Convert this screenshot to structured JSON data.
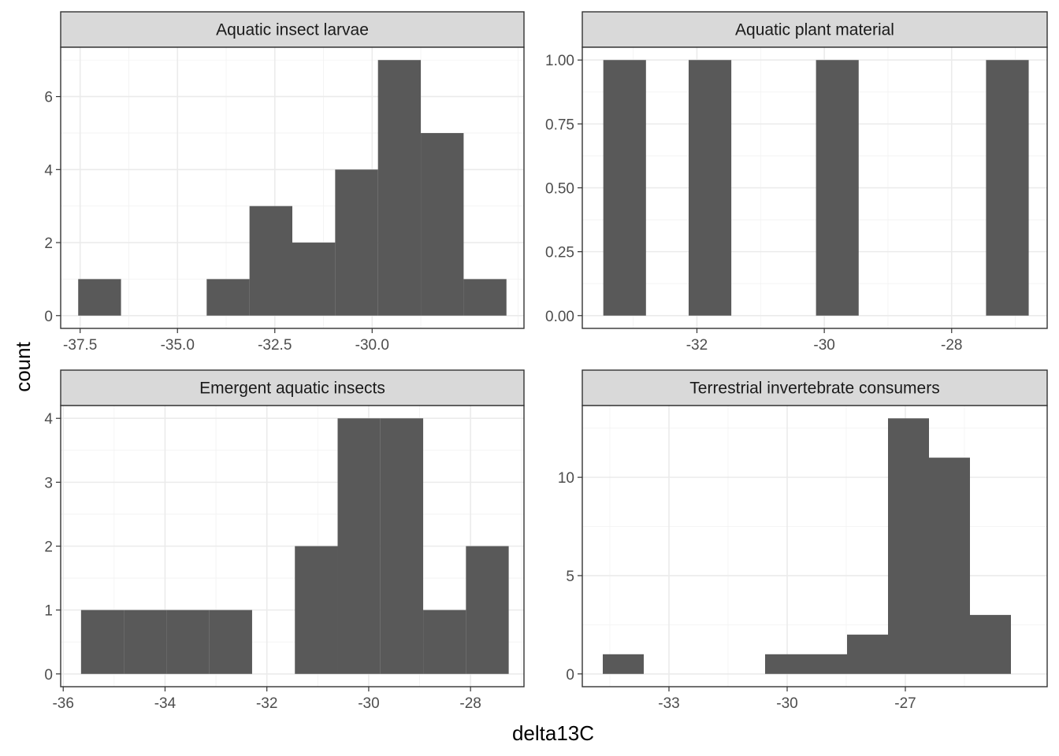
{
  "chart_data": {
    "type": "bar",
    "subtype": "faceted-histogram",
    "xlabel": "delta13C",
    "ylabel": "count",
    "bar_color": "#595959",
    "strip_fill": "#d9d9d9",
    "grid": true,
    "facets": [
      {
        "title": "Aquatic insect larvae",
        "xlim": [
          -38.0,
          -26.1
        ],
        "ylim": [
          -0.35,
          7.35
        ],
        "xticks": [
          -37.5,
          -35.0,
          -32.5,
          -30.0
        ],
        "xtick_labels": [
          "-37.5",
          "-35.0",
          "-32.5",
          "-30.0"
        ],
        "yticks": [
          0,
          2,
          4,
          6
        ],
        "ytick_labels": [
          "0",
          "2",
          "4",
          "6"
        ],
        "bins": [
          {
            "x0": -37.55,
            "x1": -36.45,
            "count": 1
          },
          {
            "x0": -35.35,
            "x1": -34.25,
            "count": 0
          },
          {
            "x0": -34.25,
            "x1": -33.15,
            "count": 1
          },
          {
            "x0": -33.15,
            "x1": -32.05,
            "count": 3
          },
          {
            "x0": -32.05,
            "x1": -30.95,
            "count": 2
          },
          {
            "x0": -30.95,
            "x1": -29.85,
            "count": 4
          },
          {
            "x0": -29.85,
            "x1": -28.75,
            "count": 7
          },
          {
            "x0": -28.75,
            "x1": -27.65,
            "count": 5
          },
          {
            "x0": -27.65,
            "x1": -26.55,
            "count": 1
          }
        ]
      },
      {
        "title": "Aquatic plant material",
        "xlim": [
          -33.8,
          -26.5
        ],
        "ylim": [
          -0.05,
          1.05
        ],
        "xticks": [
          -32,
          -30,
          -28
        ],
        "xtick_labels": [
          "-32",
          "-30",
          "-28"
        ],
        "yticks": [
          0,
          0.25,
          0.5,
          0.75,
          1.0
        ],
        "ytick_labels": [
          "0.00",
          "0.25",
          "0.50",
          "0.75",
          "1.00"
        ],
        "bins": [
          {
            "x0": -33.47,
            "x1": -32.8,
            "count": 1
          },
          {
            "x0": -32.13,
            "x1": -31.46,
            "count": 1
          },
          {
            "x0": -30.13,
            "x1": -29.46,
            "count": 1
          },
          {
            "x0": -27.46,
            "x1": -26.79,
            "count": 1
          }
        ]
      },
      {
        "title": "Emergent aquatic insects",
        "xlim": [
          -36.05,
          -26.95
        ],
        "ylim": [
          -0.2,
          4.2
        ],
        "xticks": [
          -36,
          -34,
          -32,
          -30,
          -28
        ],
        "xtick_labels": [
          "-36",
          "-34",
          "-32",
          "-30",
          "-28"
        ],
        "yticks": [
          0,
          1,
          2,
          3,
          4
        ],
        "ytick_labels": [
          "0",
          "1",
          "2",
          "3",
          "4"
        ],
        "bins": [
          {
            "x0": -35.65,
            "x1": -34.81,
            "count": 1
          },
          {
            "x0": -34.81,
            "x1": -33.97,
            "count": 1
          },
          {
            "x0": -33.97,
            "x1": -33.13,
            "count": 1
          },
          {
            "x0": -33.13,
            "x1": -32.29,
            "count": 1
          },
          {
            "x0": -31.45,
            "x1": -30.61,
            "count": 2
          },
          {
            "x0": -30.61,
            "x1": -29.77,
            "count": 4
          },
          {
            "x0": -29.77,
            "x1": -28.93,
            "count": 4
          },
          {
            "x0": -28.93,
            "x1": -28.09,
            "count": 1
          },
          {
            "x0": -28.09,
            "x1": -27.25,
            "count": 2
          }
        ]
      },
      {
        "title": "Terrestrial invertebrate consumers",
        "xlim": [
          -35.2,
          -23.4
        ],
        "ylim": [
          -0.65,
          13.65
        ],
        "xticks": [
          -33,
          -30,
          -27
        ],
        "xtick_labels": [
          "-33",
          "-30",
          "-27"
        ],
        "yticks": [
          0,
          5,
          10
        ],
        "ytick_labels": [
          "0",
          "5",
          "10"
        ],
        "bins": [
          {
            "x0": -34.68,
            "x1": -33.64,
            "count": 1
          },
          {
            "x0": -30.56,
            "x1": -29.52,
            "count": 1
          },
          {
            "x0": -29.52,
            "x1": -28.48,
            "count": 1
          },
          {
            "x0": -28.48,
            "x1": -27.44,
            "count": 2
          },
          {
            "x0": -27.44,
            "x1": -26.4,
            "count": 13
          },
          {
            "x0": -26.4,
            "x1": -25.36,
            "count": 11
          },
          {
            "x0": -25.36,
            "x1": -24.32,
            "count": 3
          }
        ]
      }
    ]
  }
}
